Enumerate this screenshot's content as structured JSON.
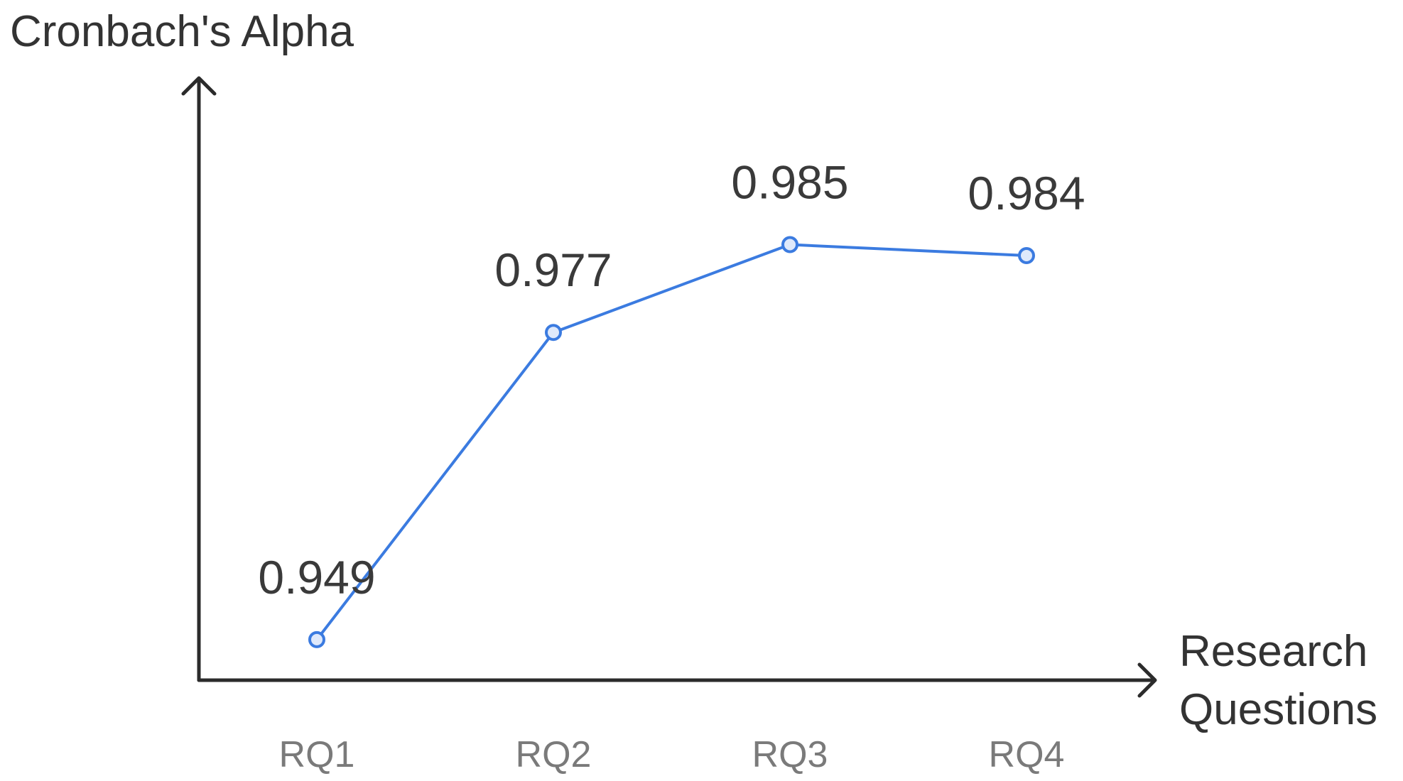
{
  "chart_data": {
    "type": "line",
    "title": "",
    "ylabel": "Cronbach's Alpha",
    "xlabel_lines": [
      "Research",
      "Questions"
    ],
    "categories": [
      "RQ1",
      "RQ2",
      "RQ3",
      "RQ4"
    ],
    "series": [
      {
        "values": [
          0.949,
          0.977,
          0.985,
          0.984
        ],
        "data_labels": [
          "0.949",
          "0.977",
          "0.985",
          "0.984"
        ]
      }
    ],
    "ylim": [
      0.94,
      0.995
    ],
    "grid": false,
    "line_color": "#3b7be0",
    "axis_color": "#2b2b2b"
  }
}
